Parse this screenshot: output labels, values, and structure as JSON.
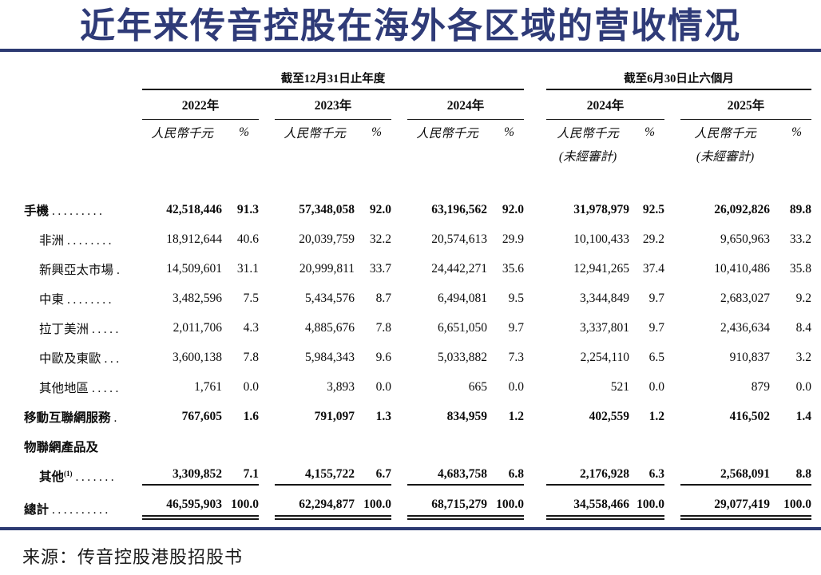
{
  "title": "近年来传音控股在海外各区域的营收情况",
  "source": "来源：传音控股港股招股书",
  "table": {
    "group_headers": {
      "annual": "截至12月31日止年度",
      "interim": "截至6月30日止六個月"
    },
    "year_headers": [
      "2022年",
      "2023年",
      "2024年",
      "2024年",
      "2025年"
    ],
    "unit_label": "人民幣千元",
    "pct_label": "%",
    "unaudited_label": "(未經審計)",
    "rows": [
      {
        "label": "手機",
        "sup": "",
        "dots": ".........",
        "indent": false,
        "bold": true,
        "line": null,
        "values": [
          "42,518,446",
          "91.3",
          "57,348,058",
          "92.0",
          "63,196,562",
          "92.0",
          "31,978,979",
          "92.5",
          "26,092,826",
          "89.8"
        ]
      },
      {
        "label": "非洲",
        "sup": "",
        "dots": "........",
        "indent": true,
        "bold": false,
        "line": null,
        "values": [
          "18,912,644",
          "40.6",
          "20,039,759",
          "32.2",
          "20,574,613",
          "29.9",
          "10,100,433",
          "29.2",
          "9,650,963",
          "33.2"
        ]
      },
      {
        "label": "新興亞太市場",
        "sup": "",
        "dots": ".",
        "indent": true,
        "bold": false,
        "line": null,
        "values": [
          "14,509,601",
          "31.1",
          "20,999,811",
          "33.7",
          "24,442,271",
          "35.6",
          "12,941,265",
          "37.4",
          "10,410,486",
          "35.8"
        ]
      },
      {
        "label": "中東",
        "sup": "",
        "dots": "........",
        "indent": true,
        "bold": false,
        "line": null,
        "values": [
          "3,482,596",
          "7.5",
          "5,434,576",
          "8.7",
          "6,494,081",
          "9.5",
          "3,344,849",
          "9.7",
          "2,683,027",
          "9.2"
        ]
      },
      {
        "label": "拉丁美洲",
        "sup": "",
        "dots": ".....",
        "indent": true,
        "bold": false,
        "line": null,
        "values": [
          "2,011,706",
          "4.3",
          "4,885,676",
          "7.8",
          "6,651,050",
          "9.7",
          "3,337,801",
          "9.7",
          "2,436,634",
          "8.4"
        ]
      },
      {
        "label": "中歐及東歐",
        "sup": "",
        "dots": "...",
        "indent": true,
        "bold": false,
        "line": null,
        "values": [
          "3,600,138",
          "7.8",
          "5,984,343",
          "9.6",
          "5,033,882",
          "7.3",
          "2,254,110",
          "6.5",
          "910,837",
          "3.2"
        ]
      },
      {
        "label": "其他地區",
        "sup": "",
        "dots": ".....",
        "indent": true,
        "bold": false,
        "line": null,
        "values": [
          "1,761",
          "0.0",
          "3,893",
          "0.0",
          "665",
          "0.0",
          "521",
          "0.0",
          "879",
          "0.0"
        ]
      },
      {
        "label": "移動互聯網服務",
        "sup": "",
        "dots": ".",
        "indent": false,
        "bold": true,
        "line": null,
        "values": [
          "767,605",
          "1.6",
          "791,097",
          "1.3",
          "834,959",
          "1.2",
          "402,559",
          "1.2",
          "416,502",
          "1.4"
        ]
      },
      {
        "label": "物聯網產品及",
        "sup": "",
        "dots": "",
        "indent": false,
        "bold": true,
        "line": null,
        "values": [
          "",
          "",
          "",
          "",
          "",
          "",
          "",
          "",
          "",
          ""
        ]
      },
      {
        "label": "其他",
        "sup": "(1)",
        "dots": ".......",
        "indent": true,
        "bold": true,
        "line": "single",
        "values": [
          "3,309,852",
          "7.1",
          "4,155,722",
          "6.7",
          "4,683,758",
          "6.8",
          "2,176,928",
          "6.3",
          "2,568,091",
          "8.8"
        ]
      },
      {
        "label": "總計",
        "sup": "",
        "dots": "..........",
        "indent": false,
        "bold": true,
        "line": "double",
        "values": [
          "46,595,903",
          "100.0",
          "62,294,877",
          "100.0",
          "68,715,279",
          "100.0",
          "34,558,466",
          "100.0",
          "29,077,419",
          "100.0"
        ]
      }
    ]
  }
}
